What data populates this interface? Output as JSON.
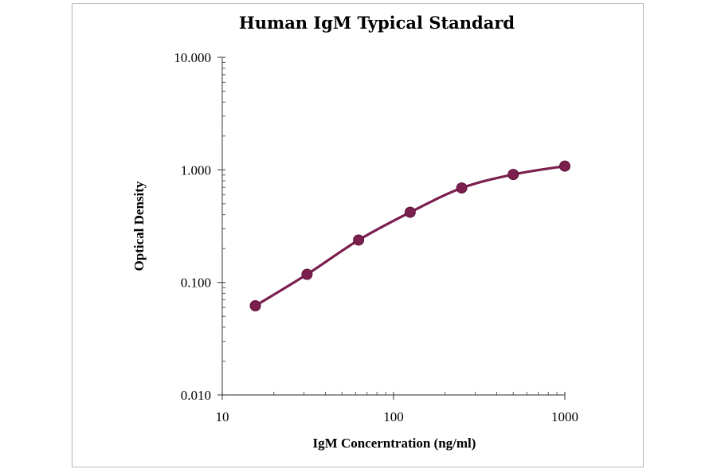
{
  "chart_data": {
    "type": "line",
    "title": "Human IgM Typical Standard",
    "xlabel": "IgM Concerntration (ng/ml)",
    "ylabel": "Optical Density",
    "x_scale": "log",
    "y_scale": "log",
    "xlim": [
      10,
      1000
    ],
    "ylim": [
      0.01,
      10
    ],
    "x_ticks": [
      "10",
      "100",
      "1000"
    ],
    "y_ticks": [
      "10.000",
      "1.000",
      "0.100",
      "0.010"
    ],
    "grid": false,
    "legend": "none",
    "colors": {
      "series": "#7a1f4e",
      "axis": "#555555"
    },
    "series": [
      {
        "x": [
          15.6,
          31.25,
          62.5,
          125,
          250,
          500,
          1000
        ],
        "y": [
          0.062,
          0.118,
          0.238,
          0.42,
          0.69,
          0.91,
          1.08
        ]
      }
    ]
  }
}
